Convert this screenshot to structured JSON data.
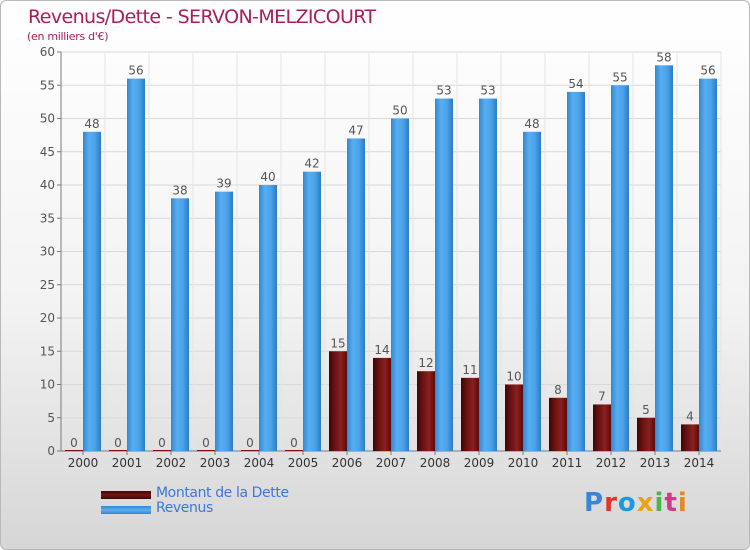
{
  "chart_data": {
    "type": "bar",
    "title": "Revenus/Dette - SERVON-MELZICOURT",
    "subtitle": "(en milliers d'€)",
    "categories": [
      "2000",
      "2001",
      "2002",
      "2003",
      "2004",
      "2005",
      "2006",
      "2007",
      "2008",
      "2009",
      "2010",
      "2011",
      "2012",
      "2013",
      "2014"
    ],
    "series": [
      {
        "name": "Montant de la Dette",
        "color": "#7a1010",
        "values": [
          0,
          0,
          0,
          0,
          0,
          0,
          15,
          14,
          12,
          11,
          10,
          8,
          7,
          5,
          4
        ]
      },
      {
        "name": "Revenus",
        "color": "#3b95dc",
        "values": [
          48,
          56,
          38,
          39,
          40,
          42,
          47,
          50,
          53,
          53,
          48,
          54,
          55,
          58,
          56
        ]
      }
    ],
    "ylim": [
      0,
      60
    ],
    "yticks": [
      0,
      5,
      10,
      15,
      20,
      25,
      30,
      35,
      40,
      45,
      50,
      55,
      60
    ],
    "grid": true,
    "legend_position": "bottom-left"
  },
  "logo": {
    "text": "Proxiti",
    "letter_colors": [
      "#3a86d6",
      "#e0342b",
      "#1f9ad6",
      "#e8a419",
      "#4db34a",
      "#d03a8a",
      "#e58a1f"
    ]
  }
}
